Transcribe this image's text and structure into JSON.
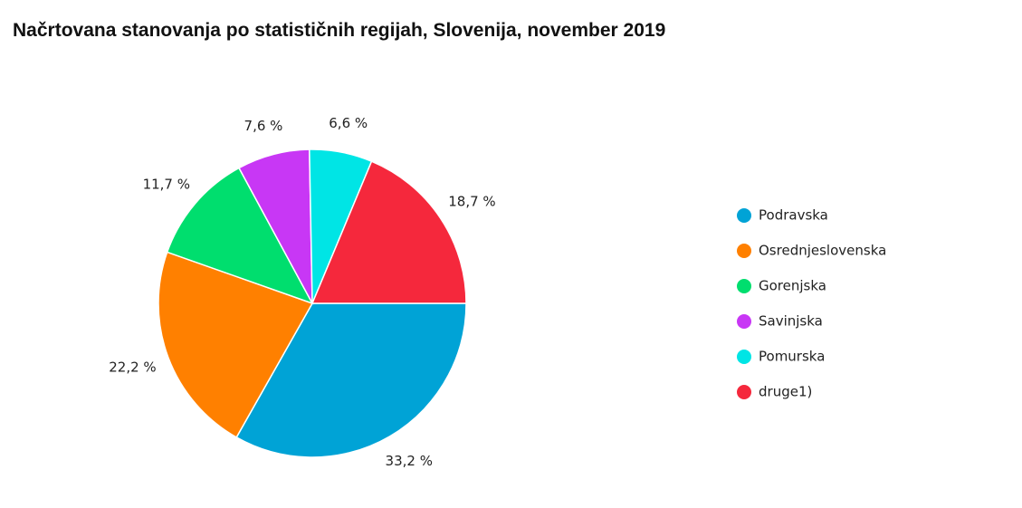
{
  "chart_data": {
    "type": "pie",
    "title": "Načrtovana stanovanja po statističnih regijah, Slovenija, november 2019",
    "categories": [
      "Podravska",
      "Osrednjeslovenska",
      "Gorenjska",
      "Savinjska",
      "Pomurska",
      "druge1)"
    ],
    "values": [
      33.2,
      22.2,
      11.7,
      7.6,
      6.6,
      18.7
    ],
    "value_labels": [
      "33,2 %",
      "22,2 %",
      "11,7 %",
      "7,6 %",
      "6,6 %",
      "18,7 %"
    ],
    "colors": [
      "#00a3d6",
      "#ff8000",
      "#00de6e",
      "#c837f5",
      "#00e5e5",
      "#f5283c"
    ],
    "legend": "right"
  }
}
